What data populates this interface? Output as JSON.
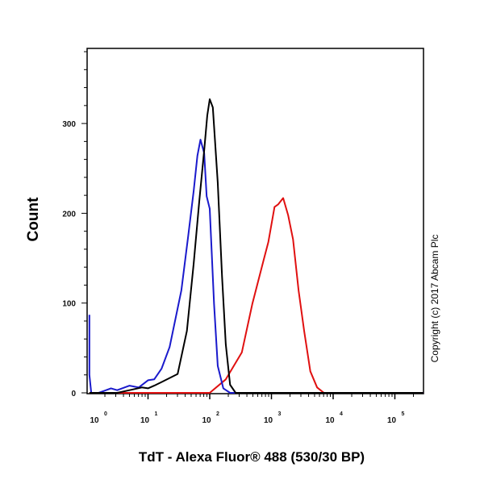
{
  "chart_data": {
    "type": "line",
    "title": "",
    "xlabel": "TdT - Alexa Fluor® 488 (530/30 BP)",
    "ylabel": "Count",
    "x_scale": "log",
    "xlim_log10": [
      0,
      5.46
    ],
    "ylim": [
      0,
      384
    ],
    "x_tick_labels": [
      {
        "base": "10",
        "exp": "0",
        "log10": 0
      },
      {
        "base": "10",
        "exp": "1",
        "log10": 1
      },
      {
        "base": "10",
        "exp": "2",
        "log10": 2
      },
      {
        "base": "10",
        "exp": "3",
        "log10": 3
      },
      {
        "base": "10",
        "exp": "4",
        "log10": 4
      },
      {
        "base": "10",
        "exp": "5",
        "log10": 5
      }
    ],
    "y_ticks": [
      0,
      100,
      200,
      300
    ],
    "grid": false,
    "annotation": "Copyright (c) 2017 Abcam Plc",
    "series": [
      {
        "name": "blue",
        "color": "#1a1acc",
        "log10_x": [
          0.0,
          0.03,
          0.08,
          0.2,
          0.4,
          0.5,
          0.7,
          0.85,
          1.0,
          1.1,
          1.22,
          1.35,
          1.54,
          1.65,
          1.74,
          1.8,
          1.85,
          1.91,
          1.95,
          2.0,
          2.07,
          2.13,
          2.22,
          2.33,
          5.46
        ],
        "count": [
          87,
          20,
          0,
          0,
          5,
          3,
          8,
          6,
          14,
          15,
          27,
          51,
          114,
          174,
          225,
          264,
          282,
          267,
          219,
          205,
          99,
          30,
          5,
          0,
          0
        ]
      },
      {
        "name": "black",
        "color": "#000000",
        "log10_x": [
          0.0,
          0.5,
          0.7,
          0.9,
          1.0,
          1.1,
          1.22,
          1.48,
          1.63,
          1.74,
          1.83,
          1.91,
          1.96,
          2.0,
          2.05,
          2.13,
          2.2,
          2.26,
          2.33,
          2.42,
          5.46
        ],
        "count": [
          0,
          0,
          3,
          6,
          5,
          8,
          12,
          21,
          69,
          144,
          213,
          270,
          309,
          327,
          318,
          234,
          129,
          54,
          9,
          0,
          0
        ]
      },
      {
        "name": "red",
        "color": "#e01010",
        "log10_x": [
          0.0,
          2.0,
          2.26,
          2.52,
          2.69,
          2.87,
          2.95,
          3.05,
          3.11,
          3.19,
          3.27,
          3.35,
          3.44,
          3.53,
          3.63,
          3.74,
          3.85,
          5.46
        ],
        "count": [
          0,
          0,
          15,
          45,
          99,
          147,
          168,
          207,
          210,
          217,
          198,
          171,
          114,
          69,
          24,
          6,
          0,
          0
        ]
      }
    ]
  }
}
